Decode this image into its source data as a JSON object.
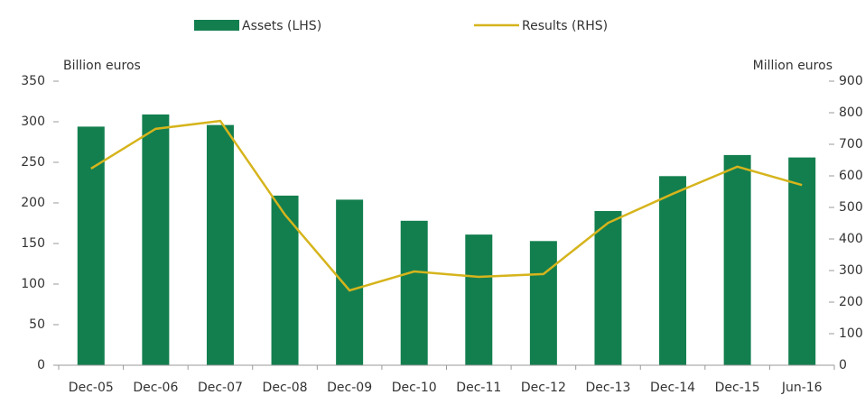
{
  "chart_data": {
    "type": "bar_line",
    "categories": [
      "Dec-05",
      "Dec-06",
      "Dec-07",
      "Dec-08",
      "Dec-09",
      "Dec-10",
      "Dec-11",
      "Dec-12",
      "Dec-13",
      "Dec-14",
      "Dec-15",
      "Jun-16"
    ],
    "series": [
      {
        "name": "Assets (LHS)",
        "color": "#137f4f",
        "type": "bar",
        "axis": "y",
        "values": [
          294,
          309,
          296,
          209,
          204,
          178,
          161,
          153,
          190,
          233,
          259,
          256
        ]
      },
      {
        "name": "Results (RHS)",
        "color": "#d6b41c",
        "type": "line",
        "axis": "y2",
        "values": [
          623,
          749,
          774,
          477,
          237,
          297,
          280,
          289,
          451,
          543,
          629,
          571
        ]
      }
    ],
    "ylabel": "Billion euros",
    "y2label": "Million euros",
    "ylim": [
      0,
      350
    ],
    "yticks": [
      0,
      50,
      100,
      150,
      200,
      250,
      300,
      350
    ],
    "y2lim": [
      0,
      900
    ],
    "y2ticks": [
      0,
      100,
      200,
      300,
      400,
      500,
      600,
      700,
      800,
      900
    ],
    "legend": "top"
  }
}
